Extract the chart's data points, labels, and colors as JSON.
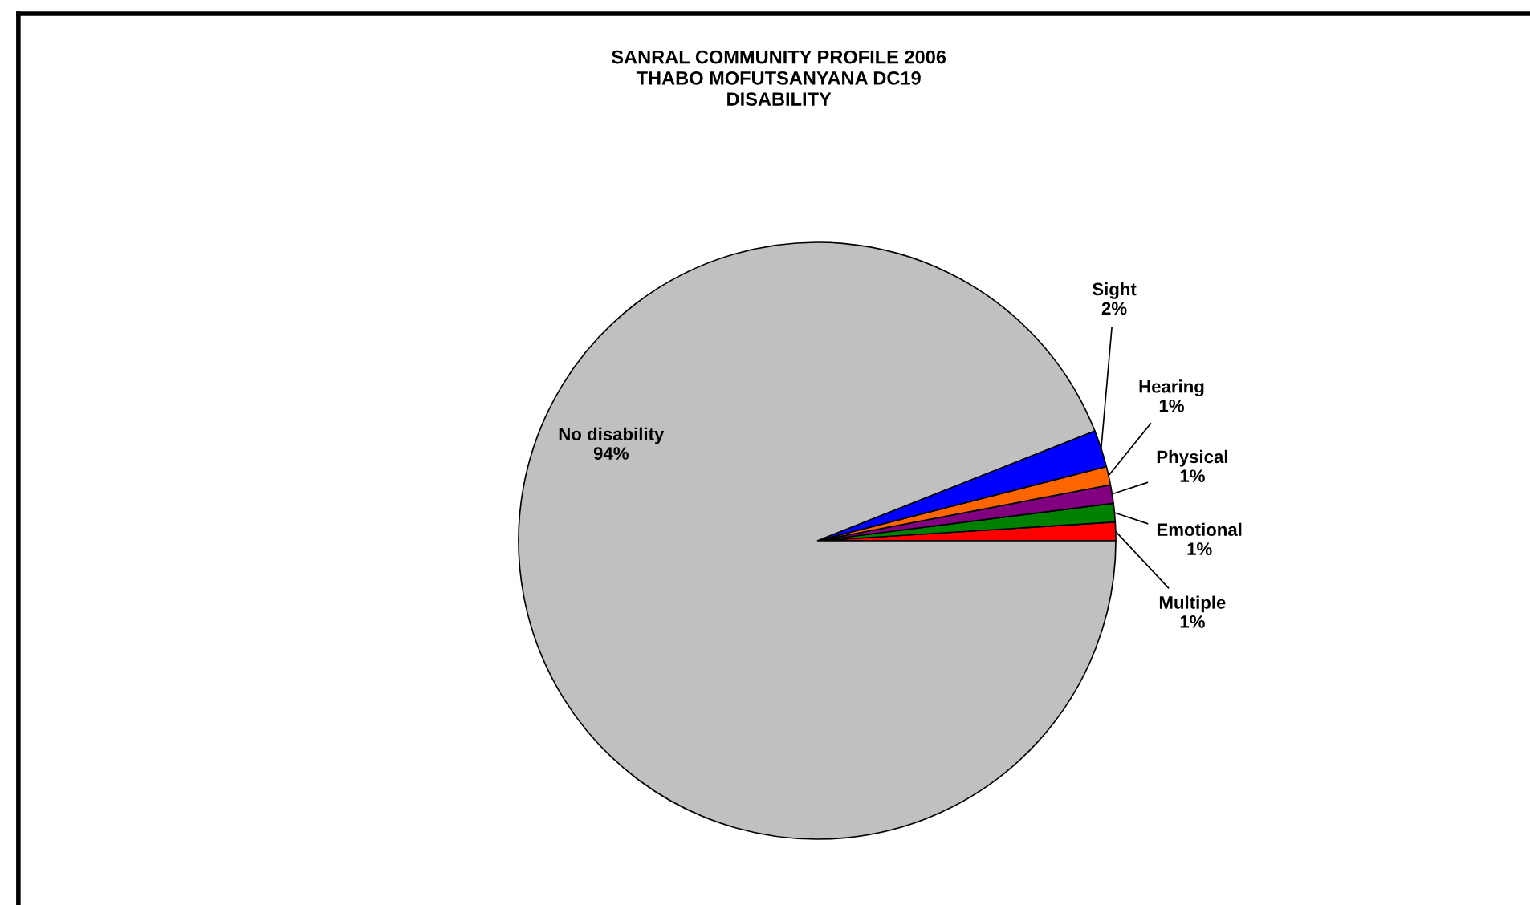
{
  "chart_data": {
    "type": "pie",
    "title": "SANRAL COMMUNITY PROFILE 2006\nTHABO MOFUTSANYANA DC19\nDISABILITY",
    "categories": [
      "Multiple",
      "Emotional",
      "Physical",
      "Hearing",
      "Sight",
      "No disability"
    ],
    "values": [
      1,
      1,
      1,
      1,
      2,
      94
    ],
    "value_labels": [
      "1%",
      "1%",
      "1%",
      "1%",
      "2%",
      "94%"
    ],
    "colors": [
      "#ff0000",
      "#008000",
      "#800080",
      "#ff6600",
      "#0000ff",
      "#c0c0c0"
    ]
  }
}
